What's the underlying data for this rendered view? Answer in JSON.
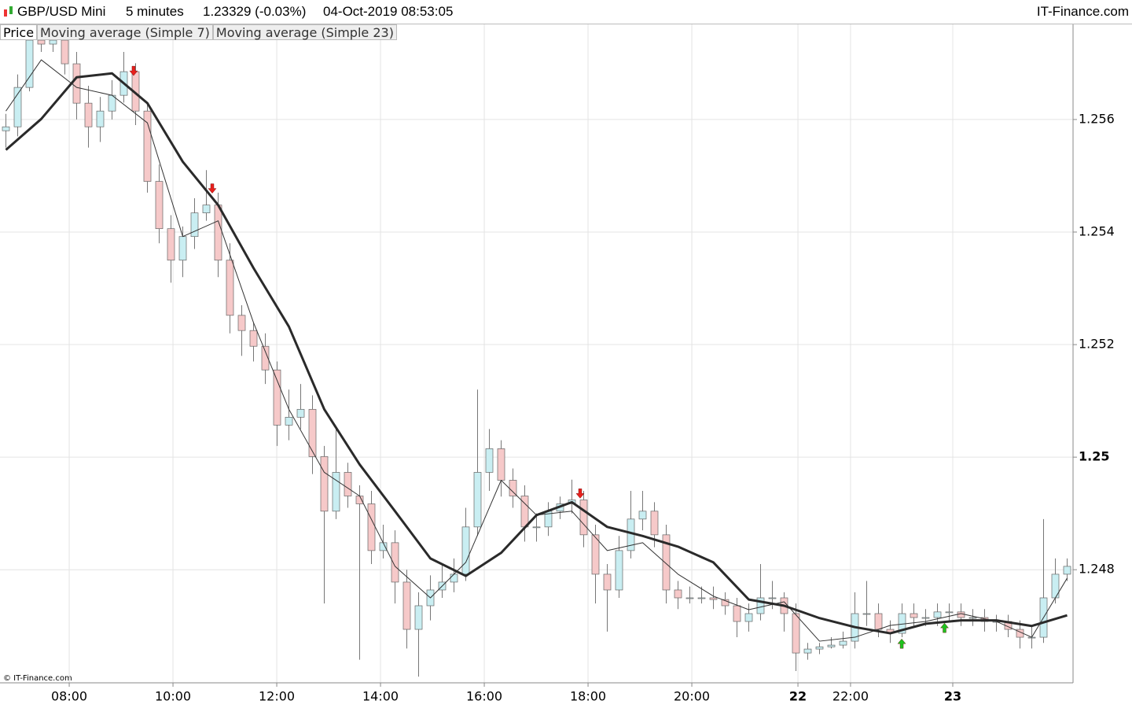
{
  "chart_data": {
    "type": "candlestick",
    "title": "GBP/USD Mini",
    "interval": "5 minutes",
    "last_quote": "1.23329 (-0.03%)",
    "timestamp": "04-Oct-2019 08:53:05",
    "brand": "IT-Finance.com",
    "copyright": "© IT-Finance.com",
    "price_name": "Price",
    "up_color": "#c9eef2",
    "down_color": "#f6c9c9",
    "open": [
      1.2558,
      1.25587,
      1.25657,
      1.25741,
      1.25734,
      1.25741,
      1.25699,
      1.25629,
      1.25587,
      1.25615,
      1.25643,
      1.25685,
      1.25615,
      1.2549,
      1.25406,
      1.2535,
      1.25392,
      1.25434,
      1.25448,
      1.2535,
      1.25252,
      1.25225,
      1.25197,
      1.25155,
      1.25057,
      1.25071,
      1.25085,
      1.25001,
      1.24904,
      1.24973,
      1.24931,
      1.24917,
      1.24834,
      1.24848,
      1.24778,
      1.24694,
      1.24736,
      1.24764,
      1.24778,
      1.24792,
      1.24876,
      1.24973,
      1.25015,
      1.24959,
      1.24931,
      1.24876,
      1.24876,
      1.24904,
      1.24917,
      1.24924,
      1.24862,
      1.24792,
      1.24764,
      1.24834,
      1.2489,
      1.24904,
      1.24862,
      1.24764,
      1.2475,
      1.2475,
      1.2475,
      1.24747,
      1.24736,
      1.24708,
      1.24722,
      1.2475,
      1.2475,
      1.24722,
      1.24652,
      1.24659,
      1.24663,
      1.24666,
      1.24673,
      1.24722,
      1.24722,
      1.24694,
      1.24687,
      1.24722,
      1.24715,
      1.24715,
      1.24725,
      1.24725,
      1.24715,
      1.24715,
      1.24708,
      1.24708,
      1.24694,
      1.2468,
      1.2468,
      1.2475,
      1.24792
    ],
    "high": [
      1.2561,
      1.2568,
      1.2576,
      1.2576,
      1.2576,
      1.2575,
      1.2572,
      1.2566,
      1.2564,
      1.2567,
      1.2572,
      1.257,
      1.2563,
      1.2552,
      1.2543,
      1.2541,
      1.2546,
      1.2551,
      1.2547,
      1.2538,
      1.2527,
      1.2524,
      1.2522,
      1.2517,
      1.2512,
      1.2513,
      1.2511,
      1.2502,
      1.2505,
      1.2499,
      1.2495,
      1.2494,
      1.2488,
      1.2487,
      1.248,
      1.2476,
      1.2479,
      1.2481,
      1.2482,
      1.2491,
      1.2512,
      1.2505,
      1.2503,
      1.2498,
      1.2495,
      1.249,
      1.2492,
      1.2493,
      1.2496,
      1.2494,
      1.2488,
      1.2481,
      1.2486,
      1.2494,
      1.2494,
      1.2492,
      1.2488,
      1.2478,
      1.2477,
      1.2477,
      1.2477,
      1.2476,
      1.2475,
      1.2474,
      1.2481,
      1.2478,
      1.2476,
      1.2474,
      1.2467,
      1.2467,
      1.2468,
      1.2469,
      1.2476,
      1.2478,
      1.2474,
      1.2471,
      1.2474,
      1.2474,
      1.2473,
      1.2474,
      1.2474,
      1.2474,
      1.2473,
      1.2473,
      1.2472,
      1.2472,
      1.2471,
      1.247,
      1.2489,
      1.2482,
      1.2482
    ],
    "low": [
      1.2555,
      1.2557,
      1.2565,
      1.2572,
      1.2572,
      1.2568,
      1.256,
      1.2555,
      1.2556,
      1.256,
      1.2563,
      1.2559,
      1.2547,
      1.2538,
      1.2531,
      1.2532,
      1.2537,
      1.2542,
      1.2532,
      1.2522,
      1.2518,
      1.2517,
      1.2513,
      1.2502,
      1.2503,
      1.2505,
      1.2497,
      1.2474,
      1.2489,
      1.2491,
      1.2464,
      1.2481,
      1.2482,
      1.2474,
      1.2466,
      1.2461,
      1.2471,
      1.2475,
      1.2476,
      1.2478,
      1.2486,
      1.2494,
      1.2493,
      1.2491,
      1.2485,
      1.2485,
      1.2486,
      1.2489,
      1.249,
      1.2484,
      1.2474,
      1.2469,
      1.2475,
      1.2482,
      1.2487,
      1.2484,
      1.2474,
      1.2473,
      1.2474,
      1.2474,
      1.2473,
      1.2472,
      1.2468,
      1.2469,
      1.2471,
      1.2473,
      1.2469,
      1.2462,
      1.2464,
      1.2465,
      1.2466,
      1.2466,
      1.2466,
      1.247,
      1.2468,
      1.2467,
      1.2468,
      1.247,
      1.247,
      1.247,
      1.2471,
      1.247,
      1.247,
      1.2469,
      1.2469,
      1.2468,
      1.2466,
      1.2466,
      1.2467,
      1.2474,
      1.2478
    ],
    "close": [
      1.25587,
      1.25657,
      1.25741,
      1.25734,
      1.25741,
      1.25699,
      1.25629,
      1.25587,
      1.25615,
      1.25643,
      1.25685,
      1.25615,
      1.2549,
      1.25406,
      1.2535,
      1.25392,
      1.25434,
      1.25448,
      1.2535,
      1.25252,
      1.25225,
      1.25197,
      1.25155,
      1.25057,
      1.25071,
      1.25085,
      1.25001,
      1.24904,
      1.24973,
      1.24931,
      1.24917,
      1.24834,
      1.24848,
      1.24778,
      1.24694,
      1.24736,
      1.24764,
      1.24778,
      1.24792,
      1.24876,
      1.24973,
      1.25015,
      1.24959,
      1.24931,
      1.24876,
      1.24876,
      1.24904,
      1.24917,
      1.24924,
      1.24862,
      1.24792,
      1.24764,
      1.24834,
      1.2489,
      1.24904,
      1.24862,
      1.24764,
      1.2475,
      1.2475,
      1.2475,
      1.24747,
      1.24736,
      1.24708,
      1.24722,
      1.2475,
      1.2475,
      1.24722,
      1.24652,
      1.24659,
      1.24663,
      1.24666,
      1.24673,
      1.24722,
      1.24722,
      1.24694,
      1.24687,
      1.24722,
      1.24715,
      1.24715,
      1.24725,
      1.24725,
      1.24715,
      1.24715,
      1.24708,
      1.24708,
      1.24694,
      1.2468,
      1.2468,
      1.2475,
      1.24792,
      1.24806
    ],
    "series": [
      {
        "name": "Moving average (Simple 7)",
        "color": "#333333",
        "width": 1,
        "x": [
          0,
          3,
          6,
          9,
          12,
          15,
          18,
          21,
          24,
          27,
          30,
          33,
          36,
          39,
          42,
          45,
          48,
          51,
          54,
          57,
          60,
          63,
          66,
          69,
          72,
          75,
          78,
          81,
          84,
          87,
          90
        ],
        "values": [
          1.25615,
          1.25706,
          1.25657,
          1.25643,
          1.25594,
          1.25392,
          1.2542,
          1.25239,
          1.25085,
          1.24973,
          1.24931,
          1.24806,
          1.2475,
          1.24813,
          1.24959,
          1.24897,
          1.24904,
          1.24834,
          1.24848,
          1.24792,
          1.24753,
          1.24729,
          1.24743,
          1.24673,
          1.2468,
          1.24701,
          1.24708,
          1.24722,
          1.24708,
          1.2468,
          1.24785
        ]
      },
      {
        "name": "Moving average (Simple 23)",
        "color": "#2a2a2a",
        "width": 3,
        "x": [
          0,
          3,
          6,
          9,
          12,
          15,
          18,
          21,
          24,
          27,
          30,
          33,
          36,
          39,
          42,
          45,
          48,
          51,
          54,
          57,
          60,
          63,
          66,
          69,
          72,
          75,
          78,
          81,
          84,
          87,
          90
        ],
        "values": [
          1.25546,
          1.25601,
          1.25675,
          1.25682,
          1.25629,
          1.25525,
          1.25448,
          1.25336,
          1.25232,
          1.25085,
          1.24987,
          1.24904,
          1.2482,
          1.24789,
          1.2483,
          1.24897,
          1.2492,
          1.24876,
          1.2486,
          1.24841,
          1.24813,
          1.24747,
          1.24736,
          1.24714,
          1.24698,
          1.24687,
          1.24704,
          1.2471,
          1.2471,
          1.247,
          1.24719
        ]
      }
    ],
    "sell_signals": {
      "color": "#e8201c",
      "x": [
        10.83,
        17.5,
        48.7
      ],
      "values": [
        1.25678,
        1.25469,
        1.24927
      ]
    },
    "buy_signals": {
      "color": "#1ec21e",
      "x": [
        75.97,
        79.6
      ],
      "values": [
        1.24677,
        1.24705
      ]
    },
    "xlim": [
      -0.5,
      90.5
    ],
    "ylim": [
      1.24599,
      1.25769
    ],
    "xticks": [
      {
        "value": 5.37,
        "label": "08:00"
      },
      {
        "value": 14.17,
        "label": "10:00"
      },
      {
        "value": 22.97,
        "label": "12:00"
      },
      {
        "value": 31.77,
        "label": "14:00"
      },
      {
        "value": 40.57,
        "label": "16:00"
      },
      {
        "value": 49.37,
        "label": "18:00"
      },
      {
        "value": 58.17,
        "label": "20:00"
      },
      {
        "value": 67.17,
        "label": "22",
        "bold": true
      },
      {
        "value": 71.63,
        "label": "22:00"
      },
      {
        "value": 80.3,
        "label": "23",
        "bold": true
      }
    ],
    "yticks": [
      1.248,
      {
        "value": 1.25,
        "bold": true
      },
      1.252,
      1.254,
      1.256
    ],
    "grid": true
  }
}
